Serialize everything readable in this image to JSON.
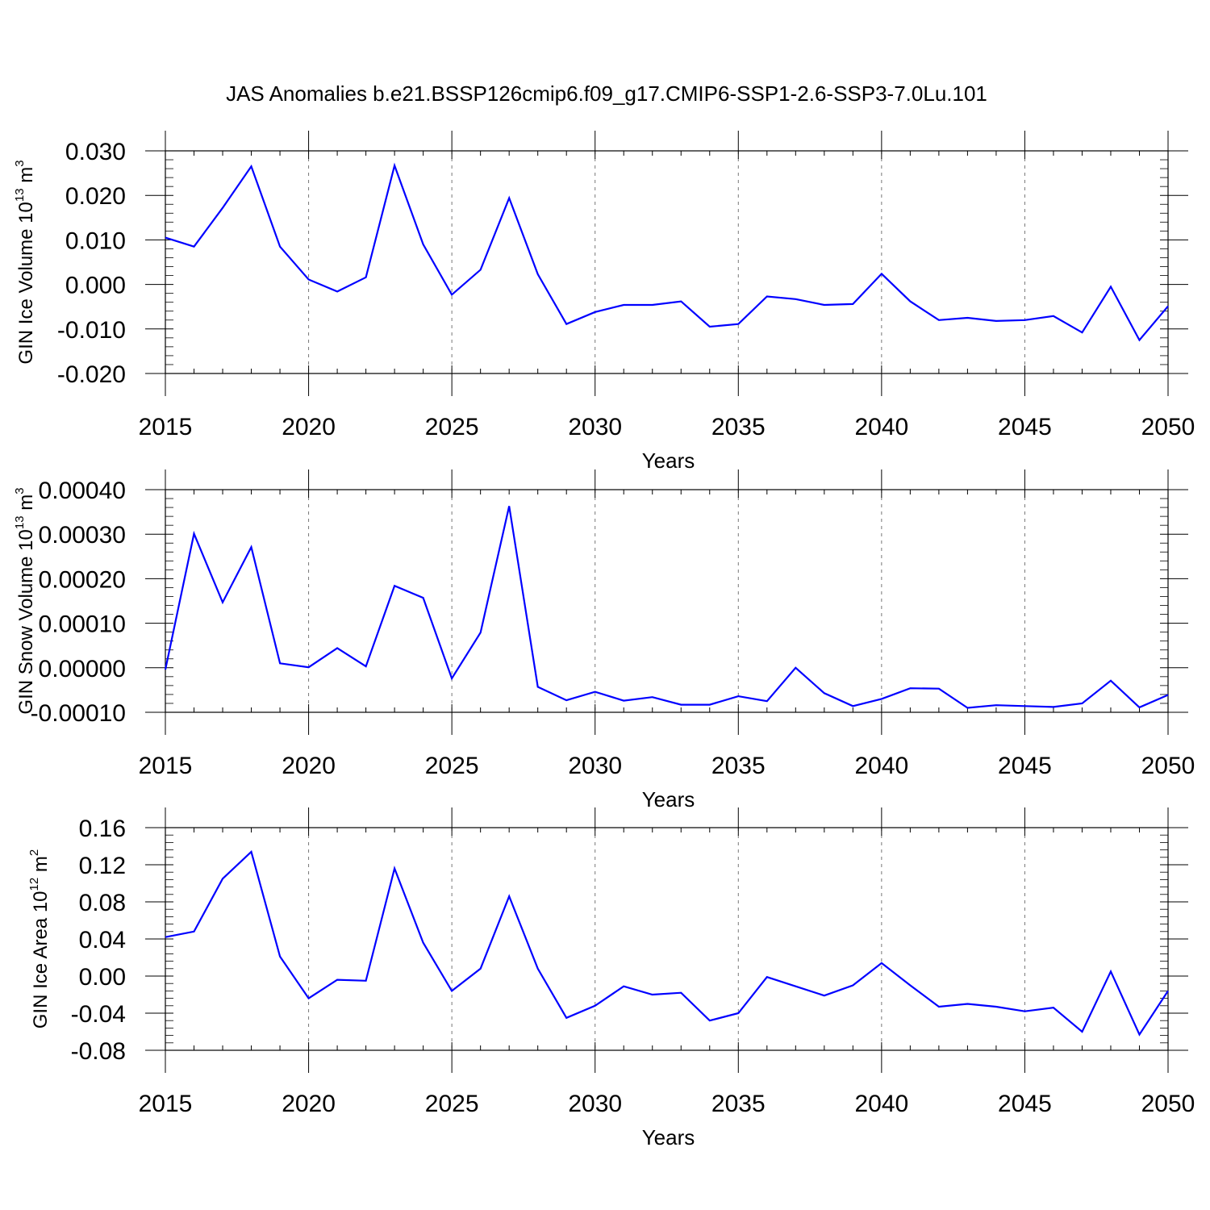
{
  "figure": {
    "title": "JAS Anomalies b.e21.BSSP126cmip6.f09_g17.CMIP6-SSP1-2.6-SSP3-7.0Lu.101",
    "line_color": "#0000ff"
  },
  "chart_data": [
    {
      "type": "line",
      "ylabel": {
        "prefix": "GIN Ice Volume 10",
        "exp": "13",
        "unit": " m",
        "unit_exp": "3"
      },
      "xlabel": "Years",
      "xlim": [
        2015,
        2050
      ],
      "ylim": [
        -0.02,
        0.03
      ],
      "xticks": [
        2015,
        2020,
        2025,
        2030,
        2035,
        2040,
        2045,
        2050
      ],
      "xtick_labels": [
        "2015",
        "2020",
        "2025",
        "2030",
        "2035",
        "2040",
        "2045",
        "2050"
      ],
      "yticks": [
        0.03,
        0.02,
        0.01,
        0.0,
        -0.01,
        -0.02
      ],
      "ytick_labels": [
        "0.030",
        "0.020",
        "0.010",
        "0.000",
        "-0.010",
        "-0.020"
      ],
      "x": [
        2015,
        2016,
        2017,
        2018,
        2019,
        2020,
        2021,
        2022,
        2023,
        2024,
        2025,
        2026,
        2027,
        2028,
        2029,
        2030,
        2031,
        2032,
        2033,
        2034,
        2035,
        2036,
        2037,
        2038,
        2039,
        2040,
        2041,
        2042,
        2043,
        2044,
        2045,
        2046,
        2047,
        2048,
        2049,
        2050
      ],
      "values": [
        0.0105,
        0.0085,
        0.0172,
        0.0265,
        0.0085,
        0.0011,
        -0.0016,
        0.0016,
        0.0267,
        0.009,
        -0.0023,
        0.0033,
        0.0194,
        0.0023,
        -0.0089,
        -0.0062,
        -0.0046,
        -0.0046,
        -0.0038,
        -0.0095,
        -0.0089,
        -0.0027,
        -0.0033,
        -0.0046,
        -0.0044,
        0.0024,
        -0.0038,
        -0.008,
        -0.0075,
        -0.0082,
        -0.008,
        -0.0071,
        -0.0108,
        -0.0005,
        -0.0125,
        -0.0049
      ]
    },
    {
      "type": "line",
      "ylabel": {
        "prefix": "GIN Snow Volume 10",
        "exp": "13",
        "unit": " m",
        "unit_exp": "3"
      },
      "xlabel": "Years",
      "xlim": [
        2015,
        2050
      ],
      "ylim": [
        -0.0001,
        0.0004
      ],
      "xticks": [
        2015,
        2020,
        2025,
        2030,
        2035,
        2040,
        2045,
        2050
      ],
      "xtick_labels": [
        "2015",
        "2020",
        "2025",
        "2030",
        "2035",
        "2040",
        "2045",
        "2050"
      ],
      "yticks": [
        0.0004,
        0.0003,
        0.0002,
        0.0001,
        0.0,
        -0.0001
      ],
      "ytick_labels": [
        "0.00040",
        "0.00030",
        "0.00020",
        "0.00010",
        "0.00000",
        "-0.00010"
      ],
      "x": [
        2015,
        2016,
        2017,
        2018,
        2019,
        2020,
        2021,
        2022,
        2023,
        2024,
        2025,
        2026,
        2027,
        2028,
        2029,
        2030,
        2031,
        2032,
        2033,
        2034,
        2035,
        2036,
        2037,
        2038,
        2039,
        2040,
        2041,
        2042,
        2043,
        2044,
        2045,
        2046,
        2047,
        2048,
        2049,
        2050
      ],
      "values": [
        -4e-06,
        0.000301,
        0.000147,
        0.000271,
        1e-05,
        1e-06,
        4.4e-05,
        3e-06,
        0.000184,
        0.000157,
        -2.4e-05,
        7.9e-05,
        0.000363,
        -4.3e-05,
        -7.3e-05,
        -5.4e-05,
        -7.4e-05,
        -6.6e-05,
        -8.3e-05,
        -8.3e-05,
        -6.4e-05,
        -7.5e-05,
        0.0,
        -5.7e-05,
        -8.6e-05,
        -7e-05,
        -4.6e-05,
        -4.7e-05,
        -9e-05,
        -8.4e-05,
        -8.6e-05,
        -8.8e-05,
        -8e-05,
        -2.9e-05,
        -8.9e-05,
        -6.1e-05
      ]
    },
    {
      "type": "line",
      "ylabel": {
        "prefix": "GIN Ice Area 10",
        "exp": "12",
        "unit": " m",
        "unit_exp": "2"
      },
      "xlabel": "Years",
      "xlim": [
        2015,
        2050
      ],
      "ylim": [
        -0.08,
        0.16
      ],
      "xticks": [
        2015,
        2020,
        2025,
        2030,
        2035,
        2040,
        2045,
        2050
      ],
      "xtick_labels": [
        "2015",
        "2020",
        "2025",
        "2030",
        "2035",
        "2040",
        "2045",
        "2050"
      ],
      "yticks": [
        0.16,
        0.12,
        0.08,
        0.04,
        0.0,
        -0.04,
        -0.08
      ],
      "ytick_labels": [
        "0.16",
        "0.12",
        "0.08",
        "0.04",
        "0.00",
        "-0.04",
        "-0.08"
      ],
      "x": [
        2015,
        2016,
        2017,
        2018,
        2019,
        2020,
        2021,
        2022,
        2023,
        2024,
        2025,
        2026,
        2027,
        2028,
        2029,
        2030,
        2031,
        2032,
        2033,
        2034,
        2035,
        2036,
        2037,
        2038,
        2039,
        2040,
        2041,
        2042,
        2043,
        2044,
        2045,
        2046,
        2047,
        2048,
        2049,
        2050
      ],
      "values": [
        0.042,
        0.048,
        0.105,
        0.134,
        0.021,
        -0.024,
        -0.004,
        -0.005,
        0.116,
        0.036,
        -0.016,
        0.008,
        0.086,
        0.008,
        -0.045,
        -0.032,
        -0.011,
        -0.02,
        -0.018,
        -0.048,
        -0.04,
        -0.001,
        -0.011,
        -0.021,
        -0.01,
        0.014,
        -0.01,
        -0.033,
        -0.03,
        -0.033,
        -0.038,
        -0.034,
        -0.06,
        0.005,
        -0.063,
        -0.016
      ]
    }
  ]
}
